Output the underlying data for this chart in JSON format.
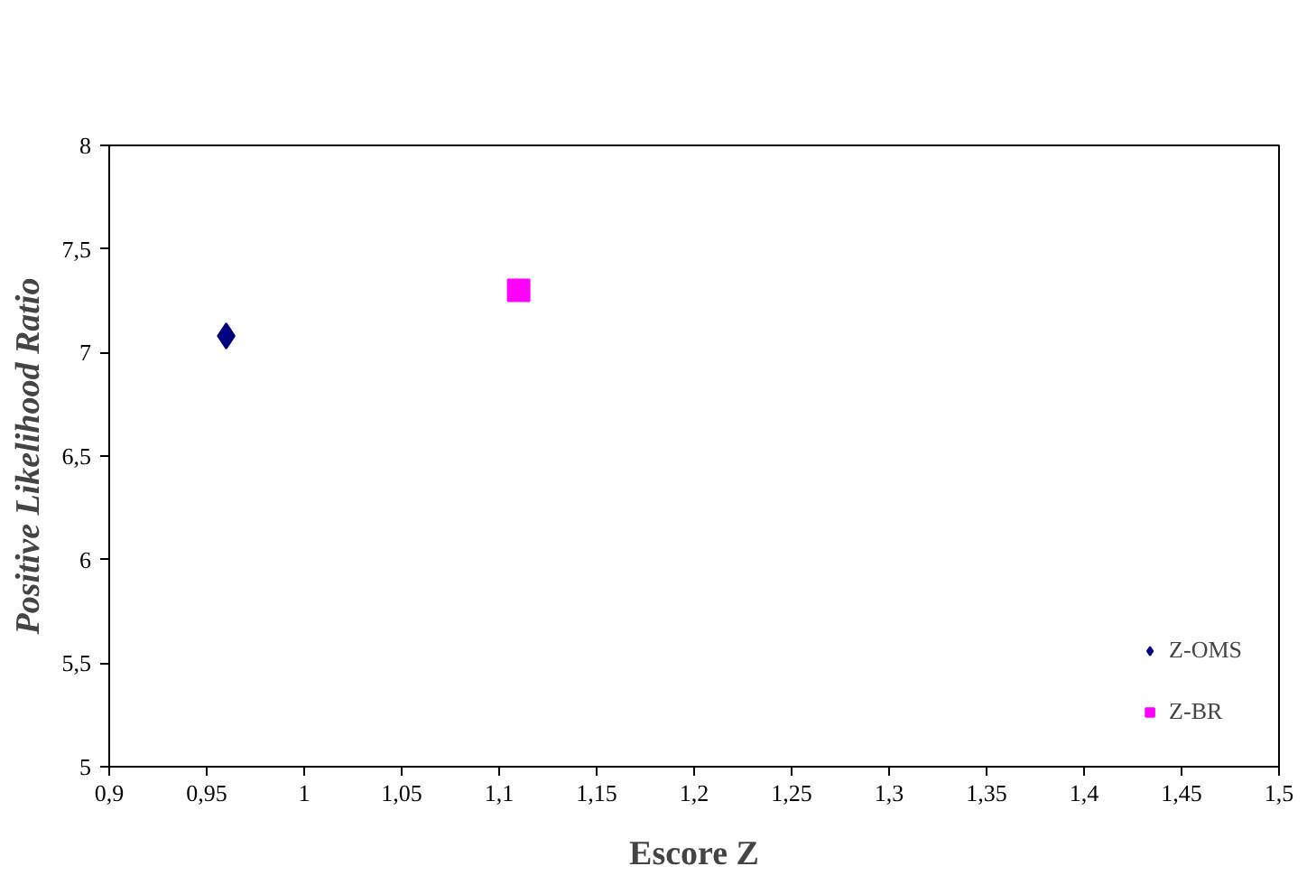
{
  "chart_data": {
    "type": "scatter",
    "xlabel": "Escore Z",
    "ylabel": "Positive Likelihood Ratio",
    "xlim": [
      0.9,
      1.5
    ],
    "ylim": [
      5,
      8
    ],
    "xticks": [
      {
        "value": 0.9,
        "label": "0,9"
      },
      {
        "value": 0.95,
        "label": "0,95"
      },
      1,
      {
        "value": 1.05,
        "label": "1,05"
      },
      {
        "value": 1.1,
        "label": "1,1"
      },
      {
        "value": 1.15,
        "label": "1,15"
      },
      {
        "value": 1.2,
        "label": "1,2"
      },
      {
        "value": 1.25,
        "label": "1,25"
      },
      {
        "value": 1.3,
        "label": "1,3"
      },
      {
        "value": 1.35,
        "label": "1,35"
      },
      {
        "value": 1.4,
        "label": "1,4"
      },
      {
        "value": 1.45,
        "label": "1,45"
      },
      {
        "value": 1.5,
        "label": "1,5"
      }
    ],
    "yticks": [
      5,
      {
        "value": 5.5,
        "label": "5,5"
      },
      6,
      {
        "value": 6.5,
        "label": "6,5"
      },
      7,
      {
        "value": 7.5,
        "label": "7,5"
      },
      8
    ],
    "grid": false,
    "legend": "bottom right",
    "series": [
      {
        "name": "Z-OMS",
        "color": "#000080",
        "marker": "diamond",
        "x": [
          0.96
        ],
        "values": [
          7.08
        ]
      },
      {
        "name": "Z-BR",
        "color": "#ff00ff",
        "marker": "square",
        "x": [
          1.11
        ],
        "values": [
          7.3
        ]
      }
    ]
  }
}
